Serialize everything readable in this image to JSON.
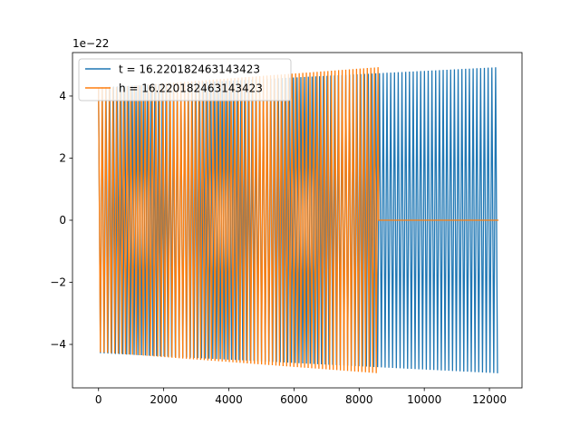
{
  "chart_data": {
    "type": "line",
    "title": "",
    "xlabel": "",
    "ylabel": "",
    "y_offset_label": "1e−22",
    "xlim": [
      -800,
      13000
    ],
    "ylim": [
      -5.4,
      5.4
    ],
    "xticks": [
      0,
      2000,
      4000,
      6000,
      8000,
      10000,
      12000
    ],
    "xtick_labels": [
      "0",
      "2000",
      "4000",
      "6000",
      "8000",
      "10000",
      "12000"
    ],
    "yticks": [
      -4,
      -2,
      0,
      2,
      4
    ],
    "ytick_labels": [
      "−4",
      "−2",
      "0",
      "2",
      "4"
    ],
    "grid": false,
    "legend_position": "upper-left",
    "series": [
      {
        "name": "t = 16.220182463143423",
        "color": "#1f77b4",
        "x_range": [
          0,
          12280
        ],
        "envelope_start": 4.28,
        "envelope_end": 4.93,
        "oscillation_period": 115
      },
      {
        "name": "h = 16.220182463143423",
        "color": "#ff7f0e",
        "x_range": [
          0,
          8600
        ],
        "envelope_start": 4.25,
        "envelope_end": 4.93,
        "oscillation_period": 110,
        "trailing_value": 0,
        "trailing_x_range": [
          8600,
          12280
        ]
      }
    ]
  }
}
